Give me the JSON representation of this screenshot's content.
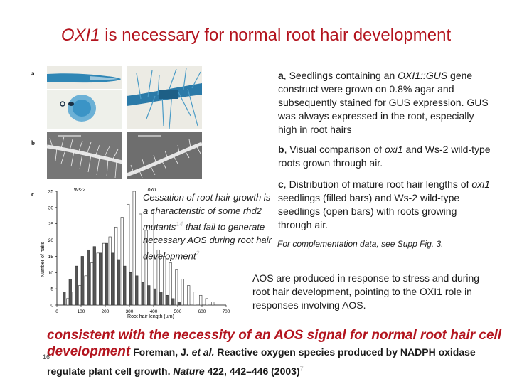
{
  "title": {
    "italic": "OXI1",
    "rest": " is necessary for normal root hair development"
  },
  "panels": {
    "a_label": "a",
    "b_label": "b",
    "c_label": "c",
    "b_left_label": "Ws-2",
    "b_right_label": "oxi1"
  },
  "caption_a": {
    "letter": "a",
    "text_1": ", Seedlings containing an ",
    "gene": "OXI1::GUS",
    "text_2": " gene construct were grown on 0.8% agar and subsequently stained for GUS expression. GUS was always expressed in the root, especially high in root hairs"
  },
  "caption_b": {
    "letter": "b",
    "text_1": ", Visual comparison of ",
    "gene": "oxi1",
    "text_2": " and Ws-2 wild-type roots grown through air."
  },
  "caption_c": {
    "letter": "c",
    "text_1": ", Distribution of mature root hair lengths of ",
    "gene": "oxi1",
    "text_2": " seedlings (filled bars) and Ws-2 wild-type seedlings (open bars) with roots growing through air."
  },
  "supp_note": "For complementation data, see Supp Fig. 3.",
  "cessation_note": {
    "text_1": "Cessation of root hair growth is a characteristic of some rhd2 mutants",
    "ref_1": "14",
    "text_2": " that fail to generate necessary AOS during root hair development",
    "ref_2": "2"
  },
  "aos_note": "AOS are produced in response to stress and during root hair development, pointing to the OXI1 role in responses involving AOS.",
  "bottom": {
    "highlight": "consistent with the necessity of an AOS signal for normal root hair cell development",
    "cite_1": " Foreman, J. ",
    "cite_etal": "et al.",
    "cite_2": " Reactive oxygen species produced by NADPH oxidase regulate plant cell growth. ",
    "cite_journal": "Nature",
    "cite_3": " 422, 442–446 (2003)",
    "cite_ref": "7"
  },
  "slide_number": "16",
  "colors": {
    "title": "#b3141e",
    "gus_blue": "#2f86b5",
    "hair_bg": "#6e6e6e"
  },
  "chart_data": {
    "type": "bar",
    "title": "",
    "xlabel": "Root hair length (µm)",
    "ylabel": "Number of hairs",
    "x_ticks": [
      "0",
      "100",
      "200",
      "300",
      "400",
      "500",
      "600",
      "700"
    ],
    "y_ticks": [
      "0",
      "5",
      "10",
      "15",
      "20",
      "25",
      "30",
      "35"
    ],
    "xlim": [
      0,
      700
    ],
    "ylim": [
      0,
      35
    ],
    "bin_width": 25,
    "series": [
      {
        "name": "Ws-2",
        "style": "open",
        "x": [
          50,
          75,
          100,
          125,
          150,
          175,
          200,
          225,
          250,
          275,
          300,
          325,
          350,
          375,
          400,
          425,
          450,
          475,
          500,
          525,
          550,
          575,
          600,
          625,
          650
        ],
        "values": [
          2,
          4,
          6,
          9,
          13,
          16,
          19,
          21,
          24,
          27,
          31,
          35,
          28,
          23,
          29,
          17,
          15,
          13,
          11,
          8,
          6,
          4,
          3,
          2,
          1
        ]
      },
      {
        "name": "oxi1",
        "style": "filled",
        "x": [
          25,
          50,
          75,
          100,
          125,
          150,
          175,
          200,
          225,
          250,
          275,
          300,
          325,
          350,
          375,
          400,
          425,
          450,
          475,
          500
        ],
        "values": [
          4,
          8,
          12,
          15,
          17,
          18,
          16,
          19,
          16,
          14,
          12,
          10,
          9,
          7,
          6,
          5,
          4,
          3,
          2,
          1
        ]
      }
    ]
  }
}
